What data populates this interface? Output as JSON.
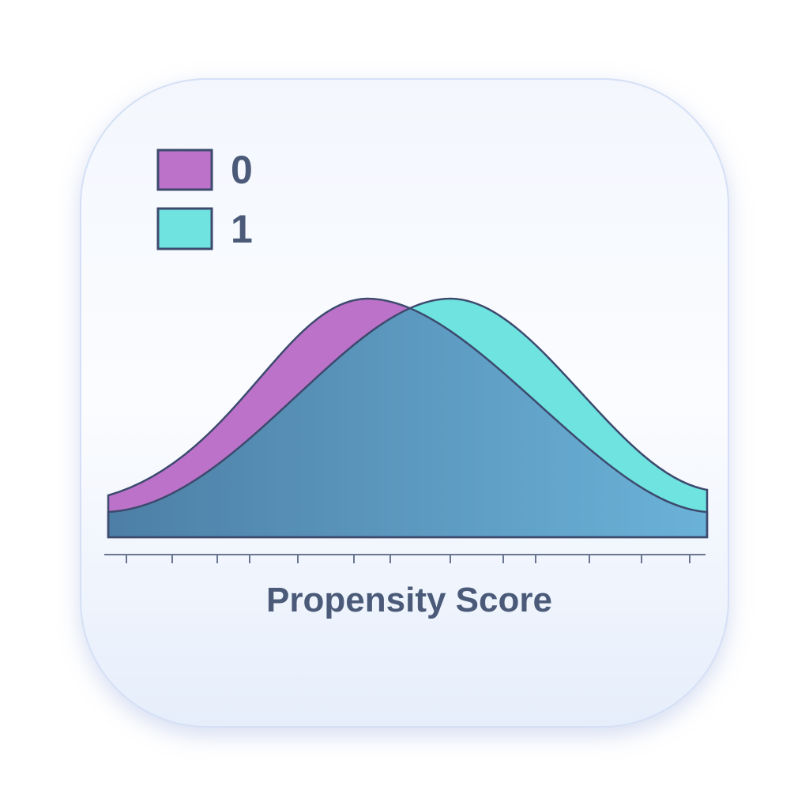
{
  "legend": {
    "items": [
      {
        "label": "0"
      },
      {
        "label": "1"
      }
    ]
  },
  "axis": {
    "label": "Propensity Score"
  }
}
